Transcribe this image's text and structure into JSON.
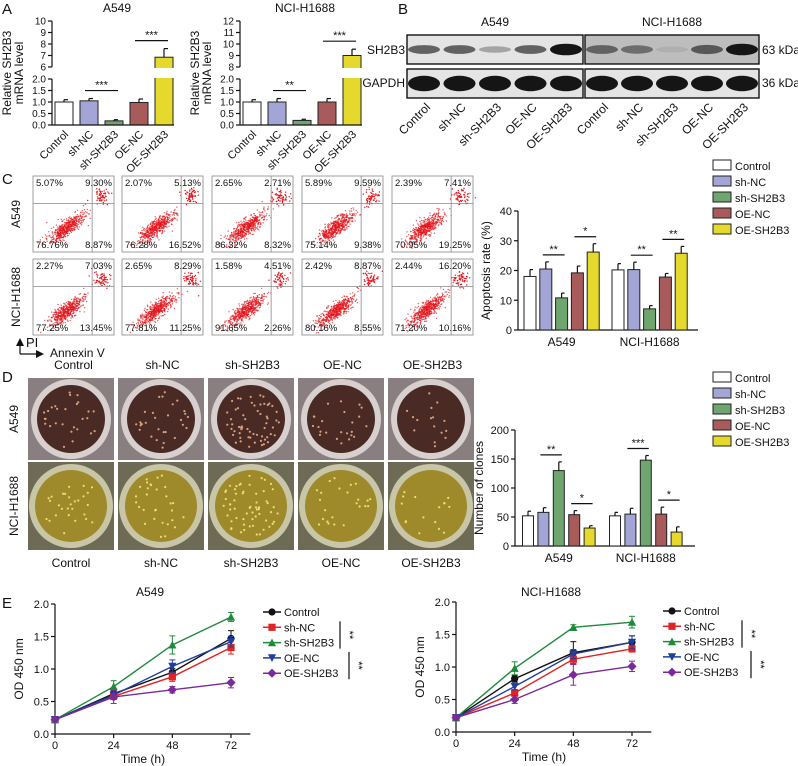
{
  "panels": [
    "A",
    "B",
    "C",
    "D",
    "E"
  ],
  "groups": [
    "Control",
    "sh-NC",
    "sh-SH2B3",
    "OE-NC",
    "OE-SH2B3"
  ],
  "bar_colors": [
    "#ffffff",
    "#a2a5d6",
    "#6fa66f",
    "#a85b5b",
    "#e6d92e"
  ],
  "line_colors": [
    "#111111",
    "#e02424",
    "#1e8a3c",
    "#1f3f9f",
    "#7b2a9b"
  ],
  "line_markers": [
    "circle",
    "square",
    "triangle-up",
    "triangle-down",
    "diamond"
  ],
  "western_blot": {
    "cell_lines": [
      "A549",
      "NCI-H1688"
    ],
    "proteins": [
      "SH2B3",
      "GAPDH"
    ],
    "sizes": [
      "63 kDa",
      "36 kDa"
    ],
    "lanes": [
      "Control",
      "sh-NC",
      "sh-SH2B3",
      "OE-NC",
      "OE-SH2B3"
    ],
    "band_intensity": {
      "A549": {
        "SH2B3": [
          0.6,
          0.6,
          0.3,
          0.6,
          0.95
        ],
        "GAPDH": [
          0.95,
          0.95,
          0.95,
          0.95,
          0.95
        ]
      },
      "NCI-H1688": {
        "SH2B3": [
          0.6,
          0.55,
          0.25,
          0.65,
          0.95
        ],
        "GAPDH": [
          0.95,
          0.95,
          0.95,
          0.95,
          0.95
        ]
      }
    }
  },
  "flow_cytometry": {
    "rows": [
      "A549",
      "NCI-H1688"
    ],
    "columns": [
      "Control",
      "sh-NC",
      "sh-SH2B3",
      "OE-NC",
      "OE-SH2B3"
    ],
    "x_axis": "Annexin V",
    "y_axis": "PI",
    "quadrants_order": [
      "upper-left",
      "upper-right",
      "lower-left",
      "lower-right"
    ],
    "quadrants": [
      [
        [
          "5.07%",
          "9.30%",
          "76.76%",
          "8.87%"
        ],
        [
          "2.07%",
          "5.13%",
          "76.28%",
          "16.52%"
        ],
        [
          "2.65%",
          "2.71%",
          "86.32%",
          "8.32%"
        ],
        [
          "5.89%",
          "9.59%",
          "75.14%",
          "9.38%"
        ],
        [
          "2.39%",
          "7.41%",
          "70.95%",
          "19.25%"
        ]
      ],
      [
        [
          "2.27%",
          "7.03%",
          "77.25%",
          "13.45%"
        ],
        [
          "2.65%",
          "8.29%",
          "77.81%",
          "11.25%"
        ],
        [
          "1.58%",
          "4.51%",
          "91.65%",
          "2.26%"
        ],
        [
          "2.42%",
          "8.87%",
          "80.16%",
          "8.55%"
        ],
        [
          "2.44%",
          "16.20%",
          "71.20%",
          "10.16%"
        ]
      ]
    ]
  },
  "colony_formation": {
    "rows": [
      "A549",
      "NCI-H1688"
    ],
    "columns": [
      "Control",
      "sh-NC",
      "sh-SH2B3",
      "OE-NC",
      "OE-SH2B3"
    ]
  },
  "chart_data": [
    {
      "type": "bar",
      "title": "A549",
      "ylabel": [
        "Relative SH2B3",
        "mRNA level"
      ],
      "categories": [
        "Control",
        "sh-NC",
        "sh-SH2B3",
        "OE-NC",
        "OE-SH2B3"
      ],
      "values": [
        1.0,
        1.05,
        0.18,
        0.98,
        6.85
      ],
      "errors": [
        0.1,
        0.1,
        0.05,
        0.15,
        0.75
      ],
      "axis_break": true,
      "lower_ylim": [
        0,
        2
      ],
      "upper_ylim": [
        6,
        10
      ],
      "lower_ticks": [
        "0.0",
        "0.5",
        "1.0",
        "1.5",
        "2.0"
      ],
      "upper_ticks": [
        "6",
        "7",
        "8",
        "9",
        "10"
      ],
      "significance": [
        {
          "from": 1,
          "to": 2,
          "label": "***"
        },
        {
          "from": 3,
          "to": 4,
          "label": "***"
        }
      ]
    },
    {
      "type": "bar",
      "title": "NCI-H1688",
      "ylabel": [
        "Relative SH2B3",
        "mRNA level"
      ],
      "categories": [
        "Control",
        "sh-NC",
        "sh-SH2B3",
        "OE-NC",
        "OE-SH2B3"
      ],
      "values": [
        1.0,
        1.0,
        0.2,
        1.0,
        9.0
      ],
      "errors": [
        0.1,
        0.15,
        0.05,
        0.15,
        0.55
      ],
      "axis_break": true,
      "lower_ylim": [
        0,
        2
      ],
      "upper_ylim": [
        8,
        12
      ],
      "lower_ticks": [
        "0.0",
        "0.5",
        "1.0",
        "1.5",
        "2.0"
      ],
      "upper_ticks": [
        "8",
        "9",
        "10",
        "11",
        "12"
      ],
      "significance": [
        {
          "from": 1,
          "to": 2,
          "label": "**"
        },
        {
          "from": 3,
          "to": 4,
          "label": "***"
        }
      ]
    },
    {
      "type": "bar",
      "title": "",
      "ylabel": "Apoptosis rate (%)",
      "categories": [
        "A549",
        "NCI-H1688"
      ],
      "ylim": [
        0,
        40
      ],
      "yticks": [
        "0",
        "10",
        "20",
        "30",
        "40"
      ],
      "legend": [
        "Control",
        "sh-NC",
        "sh-SH2B3",
        "OE-NC",
        "OE-SH2B3"
      ],
      "legend_position": "top-right",
      "series": [
        {
          "name": "Control",
          "values": [
            18.0,
            20.2
          ],
          "errors": [
            2.3,
            2.1
          ]
        },
        {
          "name": "sh-NC",
          "values": [
            20.5,
            20.3
          ],
          "errors": [
            2.4,
            2.5
          ]
        },
        {
          "name": "sh-SH2B3",
          "values": [
            10.8,
            7.1
          ],
          "errors": [
            1.6,
            1.1
          ]
        },
        {
          "name": "OE-NC",
          "values": [
            19.2,
            17.8
          ],
          "errors": [
            2.3,
            1.2
          ]
        },
        {
          "name": "OE-SH2B3",
          "values": [
            26.2,
            25.8
          ],
          "errors": [
            2.8,
            2.3
          ]
        }
      ],
      "significance": [
        [
          {
            "from": 1,
            "to": 2,
            "label": "**"
          },
          {
            "from": 3,
            "to": 4,
            "label": "*"
          }
        ],
        [
          {
            "from": 1,
            "to": 2,
            "label": "**"
          },
          {
            "from": 3,
            "to": 4,
            "label": "**"
          }
        ]
      ]
    },
    {
      "type": "bar",
      "title": "",
      "ylabel": "Number of clones",
      "categories": [
        "A549",
        "NCI-H1688"
      ],
      "ylim": [
        0,
        200
      ],
      "yticks": [
        "0",
        "50",
        "100",
        "150",
        "200"
      ],
      "legend": [
        "Control",
        "sh-NC",
        "sh-SH2B3",
        "OE-NC",
        "OE-SH2B3"
      ],
      "legend_position": "top-right",
      "series": [
        {
          "name": "Control",
          "values": [
            52,
            52
          ],
          "errors": [
            8,
            6
          ]
        },
        {
          "name": "sh-NC",
          "values": [
            58,
            55
          ],
          "errors": [
            8,
            10
          ]
        },
        {
          "name": "sh-SH2B3",
          "values": [
            130,
            148
          ],
          "errors": [
            15,
            8
          ]
        },
        {
          "name": "OE-NC",
          "values": [
            54,
            55
          ],
          "errors": [
            7,
            12
          ]
        },
        {
          "name": "OE-SH2B3",
          "values": [
            31,
            24
          ],
          "errors": [
            4,
            9
          ]
        }
      ],
      "significance": [
        [
          {
            "from": 1,
            "to": 2,
            "label": "**"
          },
          {
            "from": 3,
            "to": 4,
            "label": "*"
          }
        ],
        [
          {
            "from": 1,
            "to": 2,
            "label": "***"
          },
          {
            "from": 3,
            "to": 4,
            "label": "*"
          }
        ]
      ]
    },
    {
      "type": "line",
      "title": "A549",
      "xlabel": "Time (h)",
      "ylabel": "OD 450 nm",
      "x": [
        0,
        24,
        48,
        72
      ],
      "xticks": [
        "0",
        "24",
        "48",
        "72"
      ],
      "xlim": [
        0,
        80
      ],
      "ylim": [
        0,
        2
      ],
      "yticks": [
        "0.0",
        "0.5",
        "1.0",
        "1.5",
        "2.0"
      ],
      "legend_position": "right",
      "series": [
        {
          "name": "Control",
          "values": [
            0.22,
            0.62,
            0.95,
            1.47
          ],
          "errors": [
            0.02,
            0.05,
            0.06,
            0.12
          ]
        },
        {
          "name": "sh-NC",
          "values": [
            0.22,
            0.58,
            0.88,
            1.33
          ],
          "errors": [
            0.02,
            0.05,
            0.07,
            0.1
          ]
        },
        {
          "name": "sh-SH2B3",
          "values": [
            0.22,
            0.73,
            1.37,
            1.8
          ],
          "errors": [
            0.02,
            0.09,
            0.14,
            0.07
          ]
        },
        {
          "name": "OE-NC",
          "values": [
            0.22,
            0.6,
            1.04,
            1.42
          ],
          "errors": [
            0.02,
            0.04,
            0.1,
            0.08
          ]
        },
        {
          "name": "OE-SH2B3",
          "values": [
            0.22,
            0.57,
            0.68,
            0.79
          ],
          "errors": [
            0.02,
            0.1,
            0.05,
            0.08
          ]
        }
      ],
      "significance": [
        {
          "from": 1,
          "to": 2,
          "label": "**"
        },
        {
          "from": 3,
          "to": 4,
          "label": "**"
        }
      ]
    },
    {
      "type": "line",
      "title": "NCI-H1688",
      "xlabel": "Time (h)",
      "ylabel": "OD 450 nm",
      "x": [
        0,
        24,
        48,
        72
      ],
      "xticks": [
        "0",
        "24",
        "48",
        "72"
      ],
      "xlim": [
        0,
        80
      ],
      "ylim": [
        0,
        2
      ],
      "yticks": [
        "0.0",
        "0.5",
        "1.0",
        "1.5",
        "2.0"
      ],
      "legend_position": "right",
      "series": [
        {
          "name": "Control",
          "values": [
            0.22,
            0.82,
            1.22,
            1.38
          ],
          "errors": [
            0.02,
            0.05,
            0.17,
            0.1
          ]
        },
        {
          "name": "sh-NC",
          "values": [
            0.22,
            0.6,
            1.12,
            1.28
          ],
          "errors": [
            0.02,
            0.05,
            0.08,
            0.05
          ]
        },
        {
          "name": "sh-SH2B3",
          "values": [
            0.22,
            0.98,
            1.61,
            1.69
          ],
          "errors": [
            0.02,
            0.1,
            0.04,
            0.09
          ]
        },
        {
          "name": "OE-NC",
          "values": [
            0.22,
            0.7,
            1.2,
            1.38
          ],
          "errors": [
            0.02,
            0.05,
            0.07,
            0.1
          ]
        },
        {
          "name": "OE-SH2B3",
          "values": [
            0.22,
            0.5,
            0.88,
            1.01
          ],
          "errors": [
            0.02,
            0.06,
            0.16,
            0.08
          ]
        }
      ],
      "significance": [
        {
          "from": 1,
          "to": 2,
          "label": "**"
        },
        {
          "from": 3,
          "to": 4,
          "label": "**"
        }
      ]
    }
  ]
}
